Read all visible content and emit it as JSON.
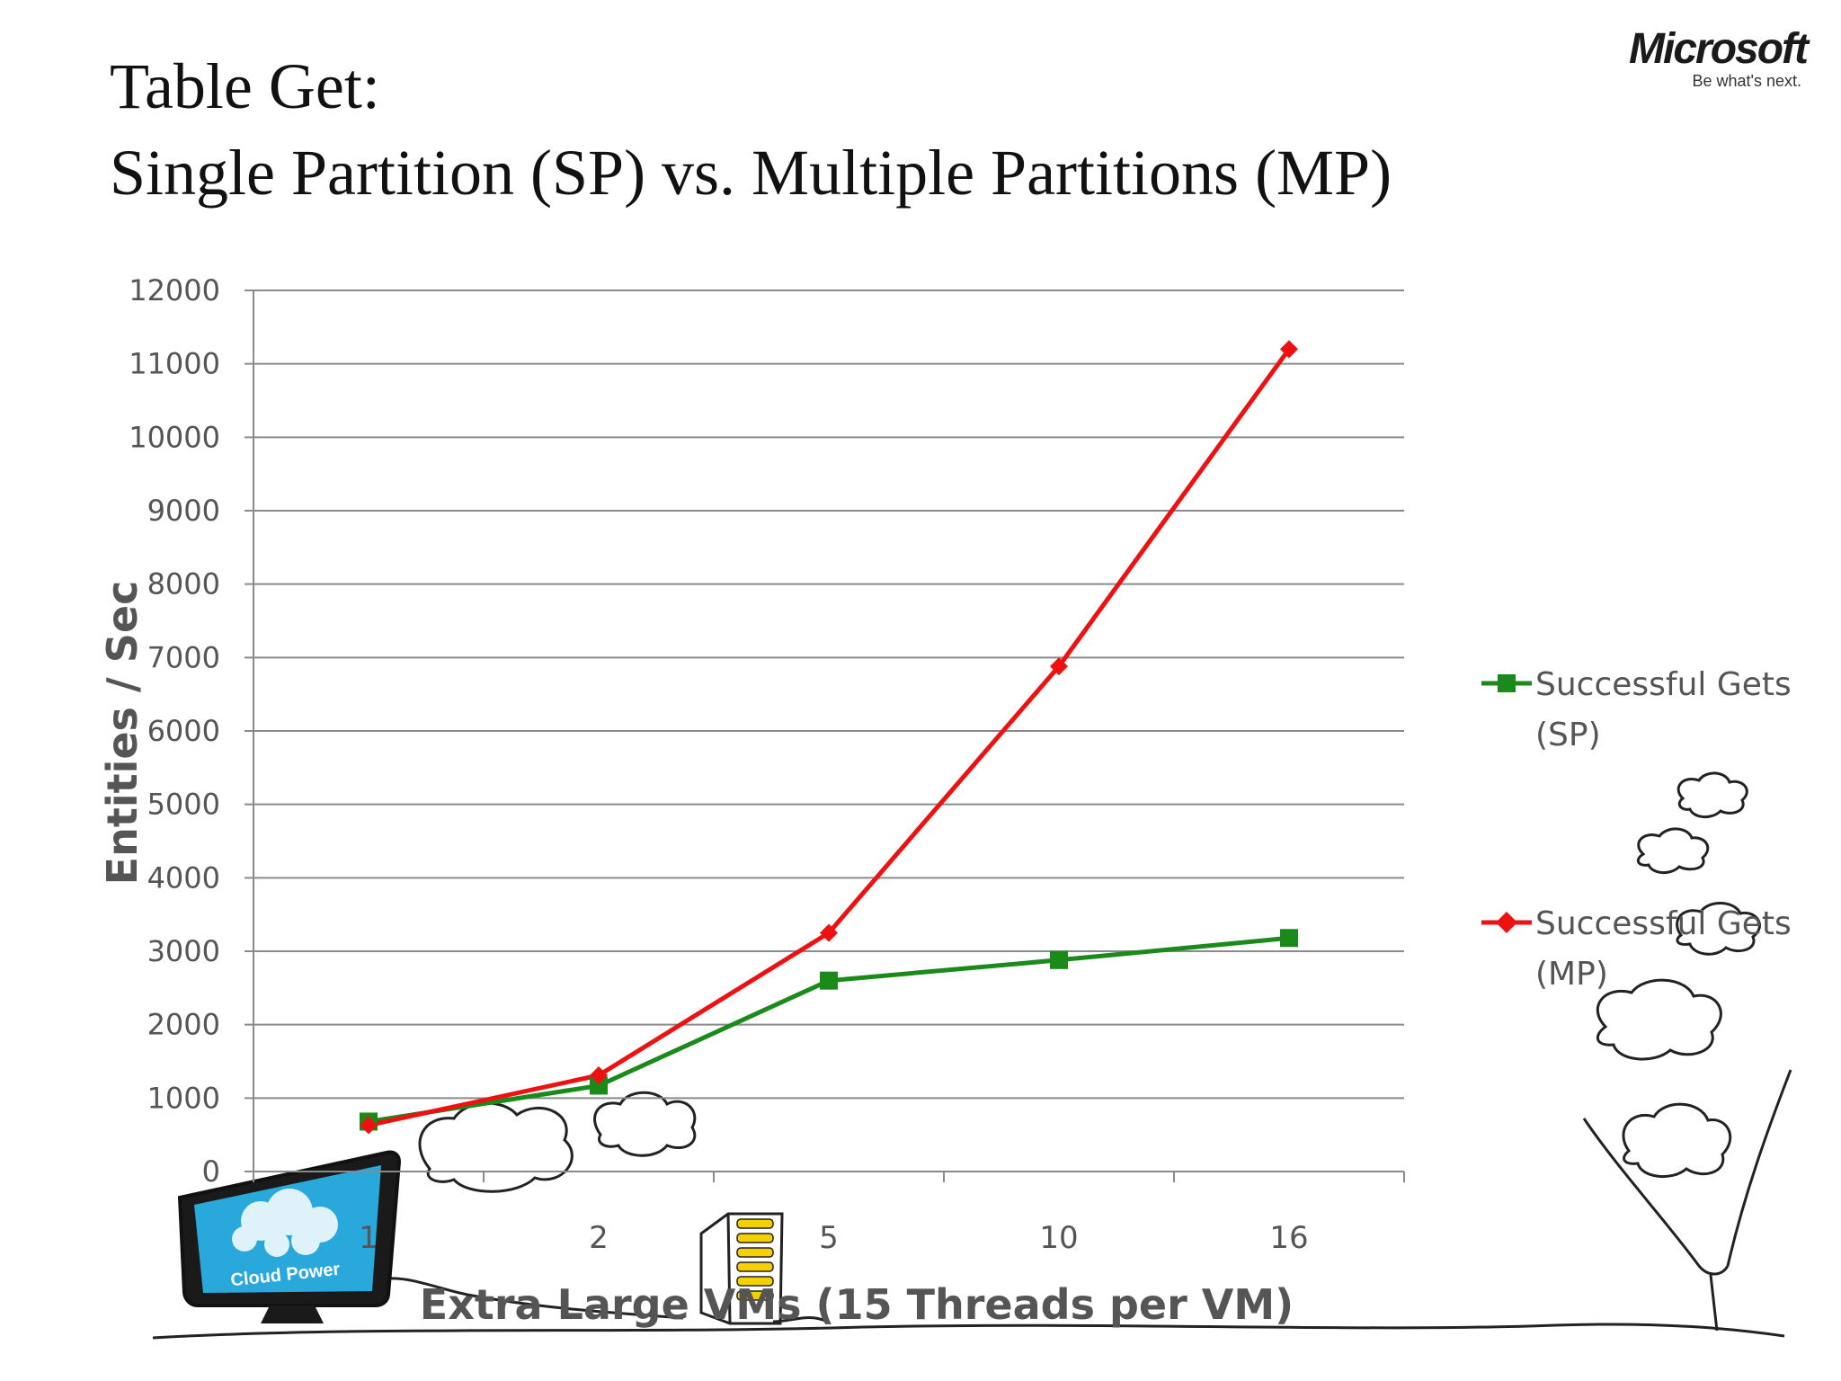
{
  "page": {
    "title_line1": "Table Get:",
    "title_line2": "Single Partition (SP) vs. Multiple Partitions (MP)"
  },
  "logo": {
    "wordmark": "Microsoft",
    "tagline": "Be what's next."
  },
  "illustration": {
    "monitor_label": "Cloud Power",
    "monitor_color": "#29a8dc"
  },
  "chart_data": {
    "type": "line",
    "categories": [
      "1",
      "2",
      "5",
      "10",
      "16"
    ],
    "ylabel": "Entities / Sec",
    "xlabel": "Extra Large VMs (15 Threads per VM)",
    "ylim": [
      0,
      12000
    ],
    "yticks": [
      "0",
      "1000",
      "2000",
      "3000",
      "4000",
      "5000",
      "6000",
      "7000",
      "8000",
      "9000",
      "10000",
      "11000",
      "12000"
    ],
    "grid": true,
    "legend_position": "right",
    "series": [
      {
        "name_line1": "Successful Gets",
        "name_line2": "(SP)",
        "color": "#1a8a1a",
        "marker": "square",
        "values": [
          680,
          1170,
          2600,
          2880,
          3180
        ]
      },
      {
        "name_line1": "Successful Gets",
        "name_line2": "(MP)",
        "color": "#ee1111",
        "marker": "diamond",
        "values": [
          630,
          1310,
          3250,
          6880,
          11200
        ]
      }
    ]
  }
}
